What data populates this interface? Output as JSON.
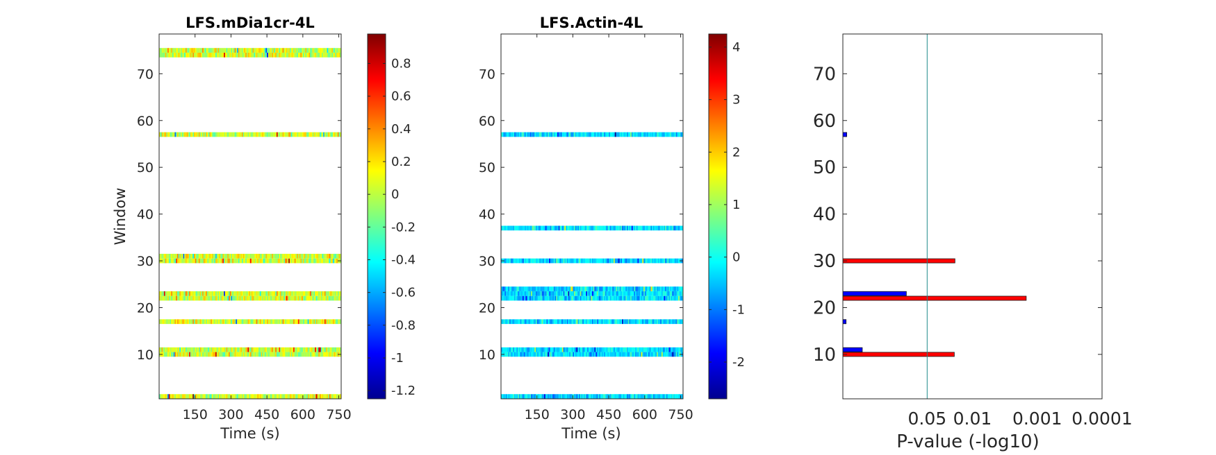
{
  "chart_data": [
    {
      "type": "heatmap",
      "title": "LFS.mDia1cr-4L",
      "xlabel": "Time (s)",
      "ylabel": "Window",
      "xlim": [
        0,
        760
      ],
      "ylim": [
        0.5,
        78.5
      ],
      "x_ticks": [
        150,
        300,
        450,
        600,
        750
      ],
      "x_tick_labels": [
        "150",
        "300",
        "450",
        "600",
        "750"
      ],
      "y_ticks": [
        10,
        20,
        30,
        40,
        50,
        60,
        70
      ],
      "y_tick_labels": [
        "10",
        "20",
        "30",
        "40",
        "50",
        "60",
        "70"
      ],
      "windows_with_data": [
        1,
        10,
        11,
        17,
        22,
        23,
        30,
        31,
        57,
        74,
        75
      ],
      "colorbar": {
        "min": -1.25,
        "max": 0.98,
        "ticks": [
          0.8,
          0.6,
          0.4,
          0.2,
          0,
          -0.2,
          -0.4,
          -0.6,
          -0.8,
          -1,
          -1.2
        ],
        "tick_labels": [
          "0.8",
          "0.6",
          "0.4",
          "0.2",
          "0",
          "-0.2",
          "-0.4",
          "-0.6",
          "-0.8",
          "-1",
          "-1.2"
        ]
      },
      "value_mean": 0.05,
      "value_spread": 0.22
    },
    {
      "type": "heatmap",
      "title": "LFS.Actin-4L",
      "xlabel": "Time (s)",
      "ylabel": "",
      "xlim": [
        0,
        760
      ],
      "ylim": [
        0.5,
        78.5
      ],
      "x_ticks": [
        150,
        300,
        450,
        600,
        750
      ],
      "x_tick_labels": [
        "150",
        "300",
        "450",
        "600",
        "750"
      ],
      "y_ticks": [
        10,
        20,
        30,
        40,
        50,
        60,
        70
      ],
      "y_tick_labels": [
        "10",
        "20",
        "30",
        "40",
        "50",
        "60",
        "70"
      ],
      "windows_with_data": [
        1,
        10,
        11,
        17,
        22,
        23,
        24,
        30,
        37,
        57
      ],
      "colorbar": {
        "min": -2.7,
        "max": 4.25,
        "ticks": [
          4,
          3,
          2,
          1,
          0,
          -1,
          -2
        ],
        "tick_labels": [
          "4",
          "3",
          "2",
          "1",
          "0",
          "-1",
          "-2"
        ]
      },
      "value_mean": -0.35,
      "value_spread": 0.5
    },
    {
      "type": "bar",
      "orientation": "horizontal",
      "title": "",
      "xlabel": "P-value (-log10)",
      "ylabel": "",
      "xlim": [
        0,
        4.0
      ],
      "ylim": [
        0.5,
        78.5
      ],
      "x_ticks": [
        1.30103,
        2,
        3,
        4
      ],
      "x_tick_labels": [
        "0.05",
        "0.01",
        "0.001",
        "0.0001"
      ],
      "y_ticks": [
        10,
        20,
        30,
        40,
        50,
        60,
        70
      ],
      "y_tick_labels": [
        "10",
        "20",
        "30",
        "40",
        "50",
        "60",
        "70"
      ],
      "threshold_line": 1.30103,
      "series": [
        {
          "color": "#0000ff",
          "points": [
            {
              "window": 11,
              "value": 0.3
            },
            {
              "window": 17,
              "value": 0.05
            },
            {
              "window": 23,
              "value": 0.98
            },
            {
              "window": 57,
              "value": 0.06
            }
          ]
        },
        {
          "color": "#ff0000",
          "points": [
            {
              "window": 10,
              "value": 1.72
            },
            {
              "window": 22,
              "value": 2.83
            },
            {
              "window": 30,
              "value": 1.73
            }
          ]
        }
      ]
    }
  ]
}
